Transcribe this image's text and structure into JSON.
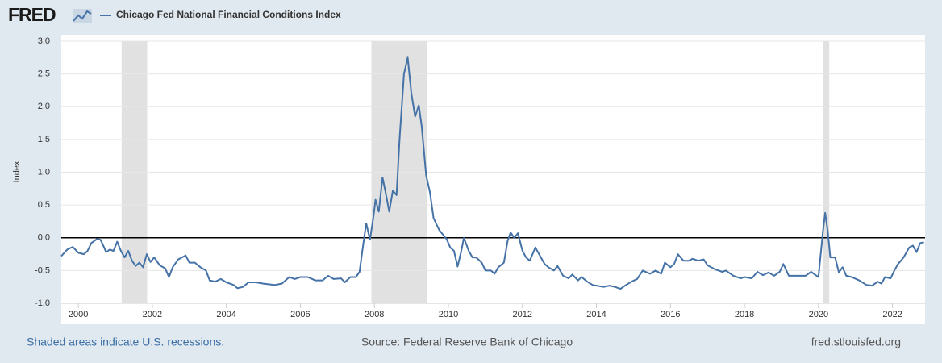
{
  "logo": "FRED",
  "chart_data": {
    "type": "line",
    "title": "Chicago Fed National Financial Conditions Index",
    "ylabel": "Index",
    "note": "Shaded areas indicate U.S. recessions.",
    "source": "Source: Federal Reserve Bank of Chicago",
    "site": "fred.stlouisfed.org",
    "xlim": [
      1999.54,
      2022.88
    ],
    "xticks": [
      2000,
      2002,
      2004,
      2006,
      2008,
      2010,
      2012,
      2014,
      2016,
      2018,
      2020,
      2022
    ],
    "ylim": [
      -1,
      3
    ],
    "yticks": [
      {
        "value": -1,
        "label": "-1.0"
      },
      {
        "value": -0.5,
        "label": "-0.5"
      },
      {
        "value": 0,
        "label": "0.0"
      },
      {
        "value": 0.5,
        "label": "0.5"
      },
      {
        "value": 1,
        "label": "1.0"
      },
      {
        "value": 1.5,
        "label": "1.5"
      },
      {
        "value": 2,
        "label": "2.0"
      },
      {
        "value": 2.5,
        "label": "2.5"
      },
      {
        "value": 3,
        "label": "3.0"
      }
    ],
    "grid": true,
    "reference_line": 0,
    "recessions": [
      [
        2001.17,
        2001.86
      ],
      [
        2007.92,
        2009.42
      ],
      [
        2020.12,
        2020.29
      ]
    ],
    "recession_color": "#e1e1e1",
    "x": [
      1999.54,
      1999.7,
      1999.85,
      2000.0,
      2000.15,
      2000.25,
      2000.35,
      2000.5,
      2000.6,
      2000.7,
      2000.75,
      2000.85,
      2000.95,
      2001.05,
      2001.15,
      2001.25,
      2001.35,
      2001.45,
      2001.55,
      2001.65,
      2001.75,
      2001.85,
      2001.95,
      2002.05,
      2002.2,
      2002.35,
      2002.45,
      2002.55,
      2002.7,
      2002.8,
      2002.9,
      2003.0,
      2003.15,
      2003.3,
      2003.45,
      2003.55,
      2003.7,
      2003.85,
      2004.0,
      2004.2,
      2004.3,
      2004.45,
      2004.6,
      2004.8,
      2005.0,
      2005.3,
      2005.5,
      2005.7,
      2005.85,
      2006.0,
      2006.2,
      2006.4,
      2006.6,
      2006.75,
      2006.9,
      2007.1,
      2007.2,
      2007.35,
      2007.5,
      2007.6,
      2007.7,
      2007.78,
      2007.88,
      2007.97,
      2008.03,
      2008.12,
      2008.22,
      2008.3,
      2008.4,
      2008.5,
      2008.6,
      2008.68,
      2008.8,
      2008.9,
      2009.0,
      2009.1,
      2009.2,
      2009.28,
      2009.4,
      2009.5,
      2009.6,
      2009.75,
      2009.95,
      2010.05,
      2010.15,
      2010.25,
      2010.35,
      2010.42,
      2010.55,
      2010.65,
      2010.75,
      2010.9,
      2011.0,
      2011.15,
      2011.25,
      2011.35,
      2011.5,
      2011.6,
      2011.68,
      2011.78,
      2011.88,
      2012.0,
      2012.1,
      2012.2,
      2012.35,
      2012.5,
      2012.6,
      2012.7,
      2012.85,
      2012.95,
      2013.1,
      2013.25,
      2013.35,
      2013.5,
      2013.6,
      2013.75,
      2013.9,
      2014.0,
      2014.2,
      2014.35,
      2014.5,
      2014.65,
      2014.8,
      2014.95,
      2015.1,
      2015.25,
      2015.45,
      2015.6,
      2015.75,
      2015.85,
      2016.0,
      2016.1,
      2016.2,
      2016.35,
      2016.5,
      2016.6,
      2016.75,
      2016.9,
      2017.0,
      2017.2,
      2017.4,
      2017.5,
      2017.7,
      2017.9,
      2018.0,
      2018.2,
      2018.35,
      2018.5,
      2018.65,
      2018.8,
      2018.95,
      2019.05,
      2019.2,
      2019.35,
      2019.5,
      2019.65,
      2019.8,
      2019.95,
      2020.0,
      2020.12,
      2020.18,
      2020.25,
      2020.32,
      2020.45,
      2020.55,
      2020.65,
      2020.75,
      2020.9,
      2021.1,
      2021.3,
      2021.45,
      2021.6,
      2021.7,
      2021.8,
      2021.95,
      2022.05,
      2022.15,
      2022.3,
      2022.45,
      2022.55,
      2022.65,
      2022.75,
      2022.85
    ],
    "series": [
      {
        "name": "Chicago Fed National Financial Conditions Index",
        "color": "#4572a7",
        "values": [
          -0.28,
          -0.18,
          -0.14,
          -0.23,
          -0.25,
          -0.2,
          -0.08,
          -0.02,
          -0.03,
          -0.15,
          -0.22,
          -0.18,
          -0.2,
          -0.06,
          -0.2,
          -0.3,
          -0.2,
          -0.35,
          -0.43,
          -0.38,
          -0.45,
          -0.25,
          -0.37,
          -0.3,
          -0.42,
          -0.47,
          -0.6,
          -0.45,
          -0.33,
          -0.3,
          -0.27,
          -0.38,
          -0.38,
          -0.45,
          -0.5,
          -0.65,
          -0.67,
          -0.63,
          -0.68,
          -0.72,
          -0.77,
          -0.75,
          -0.68,
          -0.68,
          -0.7,
          -0.72,
          -0.7,
          -0.6,
          -0.63,
          -0.6,
          -0.6,
          -0.65,
          -0.65,
          -0.58,
          -0.63,
          -0.62,
          -0.68,
          -0.6,
          -0.6,
          -0.52,
          -0.1,
          0.22,
          -0.03,
          0.3,
          0.58,
          0.4,
          0.92,
          0.7,
          0.4,
          0.72,
          0.65,
          1.5,
          2.5,
          2.75,
          2.2,
          1.85,
          2.02,
          1.7,
          0.95,
          0.7,
          0.3,
          0.12,
          -0.02,
          -0.15,
          -0.2,
          -0.44,
          -0.2,
          0.0,
          -0.2,
          -0.3,
          -0.3,
          -0.38,
          -0.5,
          -0.5,
          -0.55,
          -0.45,
          -0.38,
          -0.05,
          0.08,
          0.0,
          0.07,
          -0.2,
          -0.3,
          -0.35,
          -0.15,
          -0.3,
          -0.4,
          -0.45,
          -0.5,
          -0.43,
          -0.58,
          -0.62,
          -0.56,
          -0.65,
          -0.6,
          -0.67,
          -0.72,
          -0.73,
          -0.75,
          -0.73,
          -0.75,
          -0.78,
          -0.72,
          -0.67,
          -0.63,
          -0.5,
          -0.55,
          -0.5,
          -0.55,
          -0.38,
          -0.45,
          -0.4,
          -0.25,
          -0.35,
          -0.35,
          -0.32,
          -0.35,
          -0.33,
          -0.42,
          -0.48,
          -0.52,
          -0.5,
          -0.58,
          -0.62,
          -0.6,
          -0.62,
          -0.52,
          -0.57,
          -0.53,
          -0.58,
          -0.52,
          -0.4,
          -0.58,
          -0.58,
          -0.58,
          -0.58,
          -0.52,
          -0.58,
          -0.6,
          0.1,
          0.38,
          0.1,
          -0.3,
          -0.3,
          -0.53,
          -0.45,
          -0.58,
          -0.6,
          -0.65,
          -0.72,
          -0.73,
          -0.67,
          -0.7,
          -0.6,
          -0.62,
          -0.5,
          -0.4,
          -0.3,
          -0.15,
          -0.12,
          -0.22,
          -0.08,
          -0.07
        ]
      }
    ]
  }
}
